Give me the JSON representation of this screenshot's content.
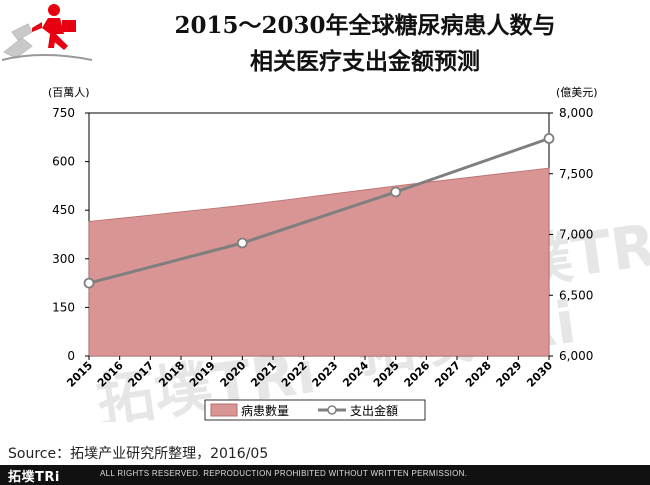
{
  "title_line1": "2015～2030年全球糖尿病患人数与",
  "title_line2": "相关医疗支出金额预测",
  "source": "Source：拓墣产业研究所整理，2016/05",
  "footer": {
    "brand": "拓墣TRi",
    "note": "ALL RIGHTS RESERVED. REPRODUCTION PROHIBITED WITHOUT WRITTEN PERMISSION."
  },
  "watermark_text": "拓墣TRi",
  "colors": {
    "area_fill": "#d99594",
    "area_stroke": "#b86e6c",
    "line": "#7f7f7f",
    "plot_bg": "#ffffff"
  },
  "chart_data": {
    "type": "area+line",
    "x": [
      "2015",
      "2016",
      "2017",
      "2018",
      "2019",
      "2020",
      "2021",
      "2022",
      "2023",
      "2024",
      "2025",
      "2026",
      "2027",
      "2028",
      "2029",
      "2030"
    ],
    "left_axis": {
      "unit_label": "(百萬人)",
      "ticks": [
        "750",
        "600",
        "450",
        "300",
        "150",
        "0"
      ],
      "ylim": [
        0,
        750
      ]
    },
    "right_axis": {
      "unit_label": "(億美元)",
      "ticks": [
        "8,000",
        "7,500",
        "7,000",
        "6,500",
        "6,000"
      ],
      "ylim": [
        6000,
        8000
      ]
    },
    "series": [
      {
        "name": "病患數量",
        "type": "area",
        "axis": "left",
        "values": [
          415,
          425,
          435,
          445,
          455,
          465,
          477,
          489,
          501,
          513,
          525,
          536,
          547,
          558,
          569,
          580
        ]
      },
      {
        "name": "支出金額",
        "type": "line",
        "axis": "right",
        "points": [
          {
            "x": "2015",
            "y": 6600
          },
          {
            "x": "2020",
            "y": 6930
          },
          {
            "x": "2025",
            "y": 7350
          },
          {
            "x": "2030",
            "y": 7790
          }
        ]
      }
    ],
    "legend_position": "bottom"
  }
}
